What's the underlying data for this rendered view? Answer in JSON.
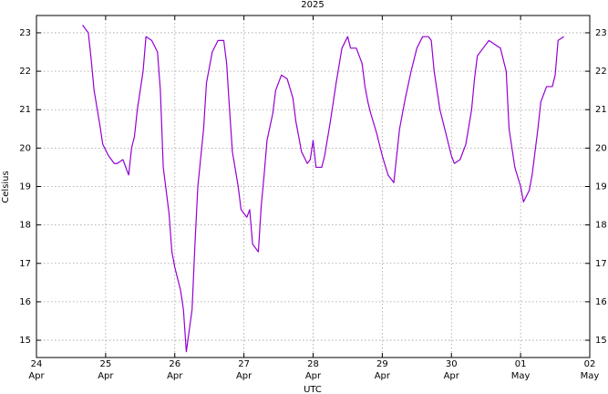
{
  "chart_data": {
    "type": "line",
    "title": "2025",
    "x_label": "UTC",
    "y_label": "Celsius",
    "x": [
      "2025-04-24T16:00",
      "2025-04-24T18:00",
      "2025-04-24T19:00",
      "2025-04-24T20:00",
      "2025-04-24T22:00",
      "2025-04-24T23:00",
      "2025-04-25T01:00",
      "2025-04-25T03:00",
      "2025-04-25T04:00",
      "2025-04-25T06:00",
      "2025-04-25T08:00",
      "2025-04-25T09:00",
      "2025-04-25T10:00",
      "2025-04-25T11:00",
      "2025-04-25T13:00",
      "2025-04-25T14:00",
      "2025-04-25T16:00",
      "2025-04-25T18:00",
      "2025-04-25T19:00",
      "2025-04-25T20:00",
      "2025-04-25T22:00",
      "2025-04-25T23:00",
      "2025-04-26T00:00",
      "2025-04-26T02:00",
      "2025-04-26T03:00",
      "2025-04-26T04:00",
      "2025-04-26T06:00",
      "2025-04-26T07:00",
      "2025-04-26T08:00",
      "2025-04-26T10:00",
      "2025-04-26T11:00",
      "2025-04-26T13:00",
      "2025-04-26T15:00",
      "2025-04-26T17:00",
      "2025-04-26T18:00",
      "2025-04-26T19:00",
      "2025-04-26T20:00",
      "2025-04-26T22:00",
      "2025-04-26T23:00",
      "2025-04-27T01:00",
      "2025-04-27T02:00",
      "2025-04-27T03:00",
      "2025-04-27T05:00",
      "2025-04-27T06:00",
      "2025-04-27T07:00",
      "2025-04-27T08:00",
      "2025-04-27T10:00",
      "2025-04-27T11:00",
      "2025-04-27T13:00",
      "2025-04-27T15:00",
      "2025-04-27T17:00",
      "2025-04-27T18:00",
      "2025-04-27T20:00",
      "2025-04-27T22:00",
      "2025-04-27T23:00",
      "2025-04-28T00:00",
      "2025-04-28T01:00",
      "2025-04-28T03:00",
      "2025-04-28T04:00",
      "2025-04-28T06:00",
      "2025-04-28T08:00",
      "2025-04-28T10:00",
      "2025-04-28T12:00",
      "2025-04-28T13:00",
      "2025-04-28T15:00",
      "2025-04-28T17:00",
      "2025-04-28T18:00",
      "2025-04-28T19:00",
      "2025-04-28T20:00",
      "2025-04-28T22:00",
      "2025-04-29T00:00",
      "2025-04-29T02:00",
      "2025-04-29T04:00",
      "2025-04-29T05:00",
      "2025-04-29T06:00",
      "2025-04-29T08:00",
      "2025-04-29T10:00",
      "2025-04-29T12:00",
      "2025-04-29T14:00",
      "2025-04-29T16:00",
      "2025-04-29T17:00",
      "2025-04-29T18:00",
      "2025-04-29T20:00",
      "2025-04-29T22:00",
      "2025-04-30T00:00",
      "2025-04-30T01:00",
      "2025-04-30T03:00",
      "2025-04-30T05:00",
      "2025-04-30T07:00",
      "2025-04-30T08:00",
      "2025-04-30T09:00",
      "2025-04-30T11:00",
      "2025-04-30T13:00",
      "2025-04-30T15:00",
      "2025-04-30T17:00",
      "2025-04-30T19:00",
      "2025-04-30T20:00",
      "2025-04-30T22:00",
      "2025-05-01T00:00",
      "2025-05-01T01:00",
      "2025-05-01T03:00",
      "2025-05-01T04:00",
      "2025-05-01T06:00",
      "2025-05-01T07:00",
      "2025-05-01T09:00",
      "2025-05-01T11:00",
      "2025-05-01T12:00",
      "2025-05-01T13:00",
      "2025-05-01T15:00"
    ],
    "series": [
      {
        "name": "Celsius",
        "color": "#9400d3",
        "values": [
          23.2,
          23.0,
          22.3,
          21.5,
          20.6,
          20.1,
          19.8,
          19.6,
          19.6,
          19.7,
          19.3,
          20.0,
          20.3,
          21.0,
          22.0,
          22.9,
          22.8,
          22.5,
          21.5,
          19.5,
          18.3,
          17.3,
          16.9,
          16.3,
          15.8,
          14.7,
          15.8,
          17.5,
          19.0,
          20.5,
          21.7,
          22.5,
          22.8,
          22.8,
          22.2,
          21.0,
          19.9,
          19.0,
          18.4,
          18.2,
          18.4,
          17.5,
          17.3,
          18.5,
          19.3,
          20.2,
          20.9,
          21.5,
          21.9,
          21.8,
          21.3,
          20.7,
          19.9,
          19.6,
          19.7,
          20.2,
          19.5,
          19.5,
          19.8,
          20.7,
          21.7,
          22.6,
          22.9,
          22.6,
          22.6,
          22.2,
          21.6,
          21.2,
          20.9,
          20.4,
          19.8,
          19.3,
          19.1,
          19.8,
          20.5,
          21.3,
          22.0,
          22.6,
          22.9,
          22.9,
          22.8,
          22.0,
          21.0,
          20.4,
          19.8,
          19.6,
          19.7,
          20.1,
          21.0,
          21.8,
          22.4,
          22.6,
          22.8,
          22.7,
          22.6,
          22.0,
          20.5,
          19.5,
          19.0,
          18.6,
          18.9,
          19.3,
          20.5,
          21.2,
          21.6,
          21.6,
          21.9,
          22.8,
          22.9
        ]
      }
    ],
    "xlim": [
      "2025-04-24",
      "2025-05-02"
    ],
    "xticks": [
      {
        "value": "2025-04-24",
        "label": "24 Apr"
      },
      {
        "value": "2025-04-25",
        "label": "25 Apr"
      },
      {
        "value": "2025-04-26",
        "label": "26 Apr"
      },
      {
        "value": "2025-04-27",
        "label": "27 Apr"
      },
      {
        "value": "2025-04-28",
        "label": "28 Apr"
      },
      {
        "value": "2025-04-29",
        "label": "29 Apr"
      },
      {
        "value": "2025-04-30",
        "label": "30 Apr"
      },
      {
        "value": "2025-05-01",
        "label": "01 May"
      },
      {
        "value": "2025-05-02",
        "label": "02 May"
      }
    ],
    "ylim": [
      14.55,
      23.45
    ],
    "yticks": [
      15,
      16,
      17,
      18,
      19,
      20,
      21,
      22,
      23
    ],
    "grid": true
  }
}
